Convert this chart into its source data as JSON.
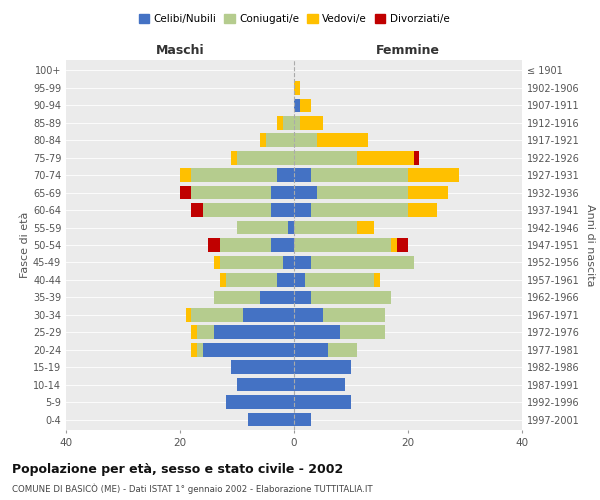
{
  "age_groups": [
    "0-4",
    "5-9",
    "10-14",
    "15-19",
    "20-24",
    "25-29",
    "30-34",
    "35-39",
    "40-44",
    "45-49",
    "50-54",
    "55-59",
    "60-64",
    "65-69",
    "70-74",
    "75-79",
    "80-84",
    "85-89",
    "90-94",
    "95-99",
    "100+"
  ],
  "birth_years": [
    "1997-2001",
    "1992-1996",
    "1987-1991",
    "1982-1986",
    "1977-1981",
    "1972-1976",
    "1967-1971",
    "1962-1966",
    "1957-1961",
    "1952-1956",
    "1947-1951",
    "1942-1946",
    "1937-1941",
    "1932-1936",
    "1927-1931",
    "1922-1926",
    "1917-1921",
    "1912-1916",
    "1907-1911",
    "1902-1906",
    "≤ 1901"
  ],
  "male": {
    "celibi": [
      8,
      12,
      10,
      11,
      16,
      14,
      9,
      6,
      3,
      2,
      4,
      1,
      4,
      4,
      3,
      0,
      0,
      0,
      0,
      0,
      0
    ],
    "coniugati": [
      0,
      0,
      0,
      0,
      1,
      3,
      9,
      8,
      9,
      11,
      9,
      9,
      12,
      14,
      15,
      10,
      5,
      2,
      0,
      0,
      0
    ],
    "vedovi": [
      0,
      0,
      0,
      0,
      1,
      1,
      1,
      0,
      1,
      1,
      0,
      0,
      0,
      0,
      2,
      1,
      1,
      1,
      0,
      0,
      0
    ],
    "divorziati": [
      0,
      0,
      0,
      0,
      0,
      0,
      0,
      0,
      0,
      0,
      2,
      0,
      2,
      2,
      0,
      0,
      0,
      0,
      0,
      0,
      0
    ]
  },
  "female": {
    "nubili": [
      3,
      10,
      9,
      10,
      6,
      8,
      5,
      3,
      2,
      3,
      0,
      0,
      3,
      4,
      3,
      0,
      0,
      0,
      1,
      0,
      0
    ],
    "coniugate": [
      0,
      0,
      0,
      0,
      5,
      8,
      11,
      14,
      12,
      18,
      17,
      11,
      17,
      16,
      17,
      11,
      4,
      1,
      0,
      0,
      0
    ],
    "vedove": [
      0,
      0,
      0,
      0,
      0,
      0,
      0,
      0,
      1,
      0,
      1,
      3,
      5,
      7,
      9,
      10,
      9,
      4,
      2,
      1,
      0
    ],
    "divorziate": [
      0,
      0,
      0,
      0,
      0,
      0,
      0,
      0,
      0,
      0,
      2,
      0,
      0,
      0,
      0,
      1,
      0,
      0,
      0,
      0,
      0
    ]
  },
  "colors": {
    "celibi": "#4472c4",
    "coniugati": "#b5cc8e",
    "vedovi": "#ffc000",
    "divorziati": "#c00000"
  },
  "title": "Popolazione per età, sesso e stato civile - 2002",
  "subtitle": "COMUNE DI BASICÒ (ME) - Dati ISTAT 1° gennaio 2002 - Elaborazione TUTTITALIA.IT",
  "xlabel_left": "Maschi",
  "xlabel_right": "Femmine",
  "ylabel_left": "Fasce di età",
  "ylabel_right": "Anni di nascita",
  "xlim": 40,
  "background_color": "#ffffff",
  "plot_bg": "#ebebeb",
  "legend_labels": [
    "Celibi/Nubili",
    "Coniugati/e",
    "Vedovi/e",
    "Divorziati/e"
  ]
}
